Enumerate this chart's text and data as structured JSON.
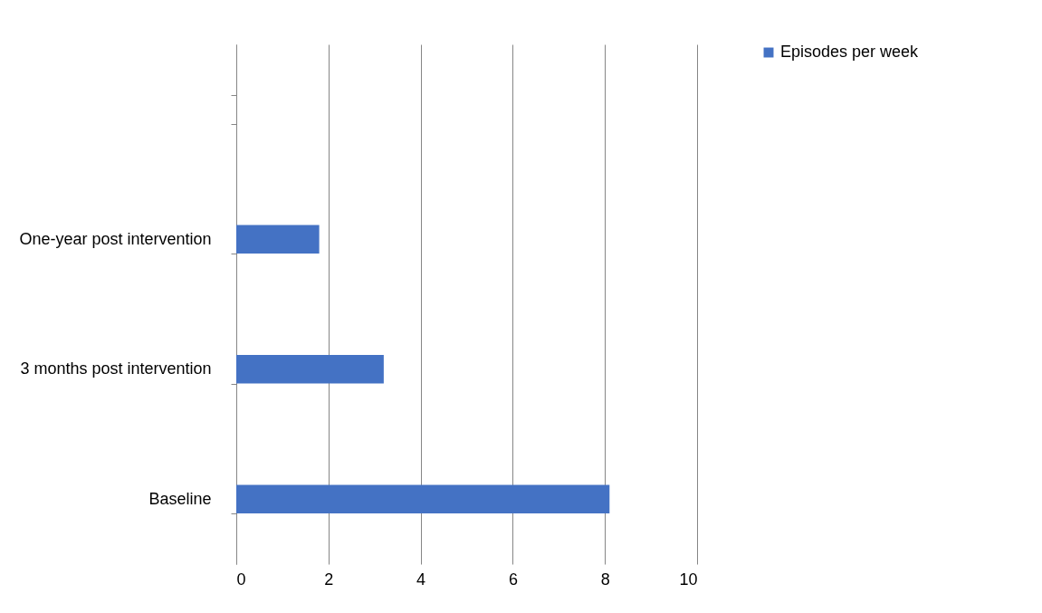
{
  "chart_data": {
    "type": "bar",
    "orientation": "horizontal",
    "categories": [
      null,
      "One-year post intervention",
      "3 months post intervention",
      "Baseline"
    ],
    "series": [
      {
        "name": "Episodes per week",
        "color": "#4472c4",
        "values": [
          null,
          1.8,
          3.2,
          8.1
        ]
      }
    ],
    "xlim": [
      0,
      10
    ],
    "xticks": [
      0,
      2,
      4,
      6,
      8,
      10
    ],
    "grid": "x",
    "legend": "right"
  }
}
